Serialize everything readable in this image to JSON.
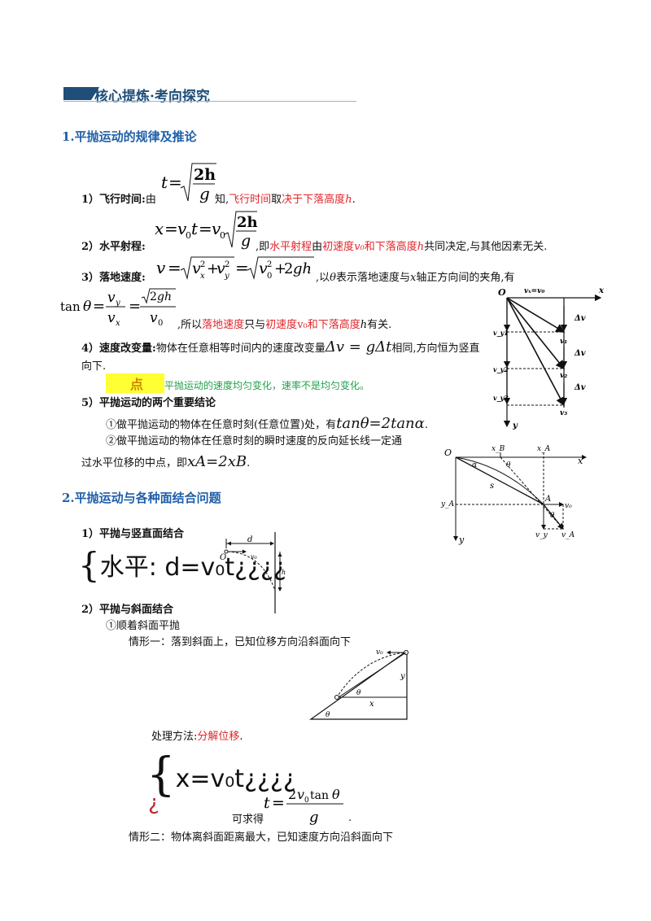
{
  "header": {
    "title": "核心提炼·考向探究"
  },
  "section1": {
    "title": "1.平抛运动的规律及推论",
    "item1": {
      "label": "1）飞行时间:",
      "pre": "由",
      "mid": "知,",
      "red1": "飞行时间",
      "mid2": "取",
      "red2": "决于下落高度",
      "var": "h",
      "end": "."
    },
    "item2": {
      "label": "2）水平射程:",
      "pre": ",即",
      "red1": "水平射程",
      "mid": "由",
      "red2": "初速度",
      "v0": "v₀",
      "red3": "和下落高度",
      "h": "h",
      "end": "共同决定,与其他因素无关."
    },
    "item3": {
      "label": "3）落地速度:",
      "post": ",以",
      "theta": "θ",
      "post2": "表示落地速度与",
      "x": "x",
      "post3": "轴正方向间的夹角,有",
      "tan_suffix": ",所以",
      "red1": "落地速度",
      "mid": "只与",
      "red2": "初速度",
      "red3": "v₀和下落高度",
      "h": "h",
      "end": "有关."
    },
    "item4": {
      "label": "4）速度改变量:",
      "text": "物体在任意相等时间内的速度改变量",
      "formula": "Δv = gΔt",
      "text2": "相同,方向恒为竖直向下."
    },
    "tip": {
      "label": "点",
      "text": "平抛运动的速度均匀变化，速率不是均匀变化。"
    },
    "item5": {
      "label": "5）平抛运动的两个重要结论",
      "c1_text": "①做平抛运动的物体在任意时刻(任意位置)处，有",
      "c1_formula": "tanθ=2tanα",
      "c1_end": ".",
      "c2_text": "②做平抛运动的物体在任意时刻的瞬时速度的反向延长线一定通",
      "c2_text2": "过水平位移的中点，即",
      "c2_formula": "xA=2xB",
      "c2_end": "."
    }
  },
  "section2": {
    "title": "2.平抛运动与各种面结合问题",
    "s1": {
      "label": "1）平抛与竖直面结合",
      "handwriting": "水平: d=v₀t¿¿¿¿"
    },
    "s2": {
      "label": "2）平抛与斜面结合",
      "sub1": "①顺着斜面平抛",
      "case1": "情形一：落到斜面上，已知位移方向沿斜面向下",
      "method_pre": "处理方法:",
      "method_red": "分解位移",
      "method_end": ".",
      "hw2": "x=v₀t¿¿¿¿",
      "hw2b": "¿",
      "solve_pre": "可求得",
      "solve_end": ".",
      "case2": "情形二：物体离斜面距离最大，已知速度方向沿斜面向下"
    }
  },
  "fig1": {
    "O": "O",
    "vx": "vₓ=v₀",
    "x": "x",
    "y": "y",
    "dv": "Δv",
    "vy1": "v_y1",
    "vy2": "v_y2",
    "vy3": "v_y3",
    "v1": "v₁",
    "v2": "v₂",
    "v3": "v₃"
  },
  "fig2": {
    "O": "O",
    "xB": "x_B",
    "xA": "x_A",
    "x": "x",
    "y": "y",
    "yA": "y_A",
    "alpha": "α",
    "theta": "θ",
    "s": "s",
    "A": "A",
    "v0": "v₀",
    "vy": "v_y",
    "vA": "v_A"
  },
  "fig3": {
    "d": "d",
    "O": "O",
    "v0": "v₀",
    "h": "h"
  },
  "fig4": {
    "v0": "v₀",
    "theta": "θ",
    "y": "y",
    "x": "x"
  }
}
